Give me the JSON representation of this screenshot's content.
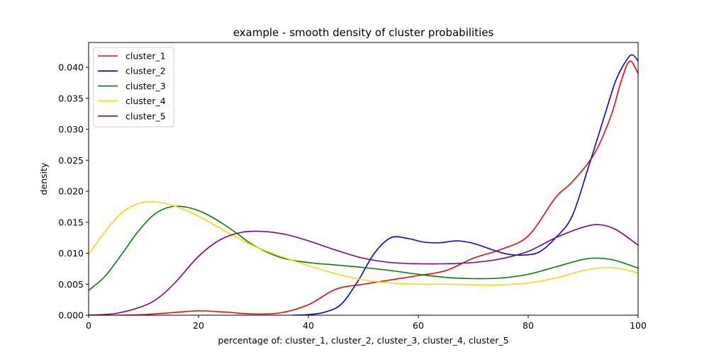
{
  "chart_data": {
    "type": "line",
    "title": "example - smooth density of cluster probabilities",
    "xlabel": "percentage of: cluster_1, cluster_2, cluster_3, cluster_4, cluster_5",
    "ylabel": "density",
    "xlim": [
      0,
      100
    ],
    "ylim": [
      0,
      0.044
    ],
    "xticks": [
      0,
      20,
      40,
      60,
      80,
      100
    ],
    "xtick_labels": [
      "0",
      "20",
      "40",
      "60",
      "80",
      "100"
    ],
    "yticks": [
      0,
      0.005,
      0.01,
      0.015,
      0.02,
      0.025,
      0.03,
      0.035,
      0.04
    ],
    "ytick_labels": [
      "0.000",
      "0.005",
      "0.010",
      "0.015",
      "0.020",
      "0.025",
      "0.030",
      "0.035",
      "0.040"
    ],
    "grid": false,
    "legend_position": "top-left",
    "series": [
      {
        "name": "cluster_1",
        "color": "#ff0000",
        "x": [
          0,
          5,
          10,
          15,
          20,
          25,
          30,
          35,
          40,
          45,
          50,
          55,
          60,
          65,
          70,
          75,
          80,
          85,
          88,
          92,
          95,
          97,
          98.5,
          100
        ],
        "y": [
          0.0,
          0.0,
          0.0001,
          0.0004,
          0.0007,
          0.0005,
          0.0002,
          0.0004,
          0.0017,
          0.0042,
          0.005,
          0.0057,
          0.0064,
          0.0072,
          0.0092,
          0.0106,
          0.0128,
          0.019,
          0.0215,
          0.026,
          0.032,
          0.038,
          0.041,
          0.039
        ]
      },
      {
        "name": "cluster_2",
        "color": "#0000ff",
        "x": [
          37,
          40,
          43,
          46,
          49,
          52,
          55,
          58,
          61,
          64,
          67,
          70,
          73,
          76,
          79,
          82,
          85,
          88,
          91,
          94,
          96,
          98,
          99,
          100
        ],
        "y": [
          0.0,
          0.0001,
          0.0005,
          0.0018,
          0.0055,
          0.01,
          0.0125,
          0.0124,
          0.0118,
          0.0117,
          0.012,
          0.0116,
          0.0107,
          0.0099,
          0.0097,
          0.0102,
          0.0125,
          0.016,
          0.024,
          0.0325,
          0.038,
          0.0413,
          0.042,
          0.041
        ]
      },
      {
        "name": "cluster_3",
        "color": "#008000",
        "x": [
          0,
          3,
          6,
          9,
          12,
          15,
          18,
          21,
          24,
          27,
          30,
          35,
          40,
          45,
          50,
          55,
          60,
          65,
          70,
          75,
          80,
          85,
          90,
          93,
          96,
          100
        ],
        "y": [
          0.004,
          0.0063,
          0.0098,
          0.0135,
          0.0163,
          0.0175,
          0.0174,
          0.0165,
          0.015,
          0.0132,
          0.0113,
          0.0093,
          0.0085,
          0.0081,
          0.0077,
          0.0072,
          0.0066,
          0.0061,
          0.0059,
          0.006,
          0.0066,
          0.0078,
          0.009,
          0.0092,
          0.0088,
          0.0076
        ]
      },
      {
        "name": "cluster_4",
        "color": "#ffd700",
        "x": [
          0,
          3,
          6,
          9,
          12,
          15,
          18,
          21,
          25,
          30,
          35,
          40,
          45,
          50,
          55,
          60,
          65,
          70,
          75,
          80,
          85,
          90,
          94,
          97,
          100
        ],
        "y": [
          0.0098,
          0.0135,
          0.0165,
          0.018,
          0.0183,
          0.0178,
          0.0168,
          0.0155,
          0.0135,
          0.0112,
          0.0095,
          0.008,
          0.0067,
          0.0057,
          0.0052,
          0.005,
          0.005,
          0.0049,
          0.0049,
          0.0052,
          0.006,
          0.0072,
          0.0077,
          0.0075,
          0.0068
        ]
      },
      {
        "name": "cluster_5",
        "color": "#800080",
        "x": [
          0,
          5,
          10,
          13,
          16,
          20,
          24,
          28,
          32,
          36,
          40,
          45,
          50,
          55,
          60,
          65,
          70,
          75,
          80,
          85,
          90,
          93,
          96,
          100
        ],
        "y": [
          0.0,
          0.0003,
          0.0015,
          0.003,
          0.0055,
          0.0095,
          0.0122,
          0.0134,
          0.0135,
          0.013,
          0.012,
          0.0105,
          0.0092,
          0.0085,
          0.0083,
          0.0083,
          0.0085,
          0.0091,
          0.0103,
          0.0125,
          0.0142,
          0.0146,
          0.0138,
          0.0113
        ]
      }
    ]
  }
}
